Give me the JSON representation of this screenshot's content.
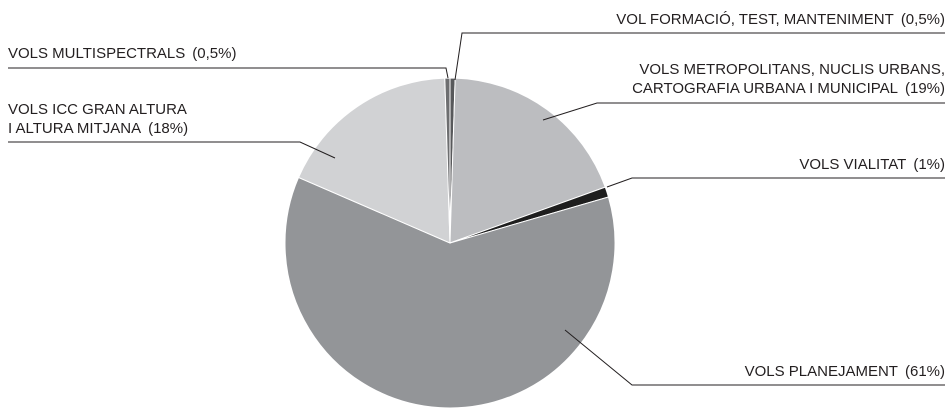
{
  "chart_data": {
    "type": "pie",
    "categories": [
      [
        "VOL FORMACIÓ, TEST, MANTENIMENT"
      ],
      [
        "VOLS METROPOLITANS, NUCLIS URBANS,",
        "CARTOGRAFIA URBANA I MUNICIPAL"
      ],
      [
        "VOLS VIALITAT"
      ],
      [
        "VOLS PLANEJAMENT"
      ],
      [
        "VOLS ICC GRAN ALTURA",
        "I ALTURA MITJANA"
      ],
      [
        "VOLS MULTISPECTRALS"
      ]
    ],
    "values": [
      0.5,
      19,
      1,
      61,
      18,
      0.5
    ],
    "value_labels": [
      "(0,5%)",
      "(19%)",
      "(1%)",
      "(61%)",
      "(18%)",
      "(0,5%)"
    ],
    "colors": [
      "#58595b",
      "#bcbdc0",
      "#1e1e1e",
      "#939598",
      "#d1d2d4",
      "#6d6e70"
    ]
  }
}
